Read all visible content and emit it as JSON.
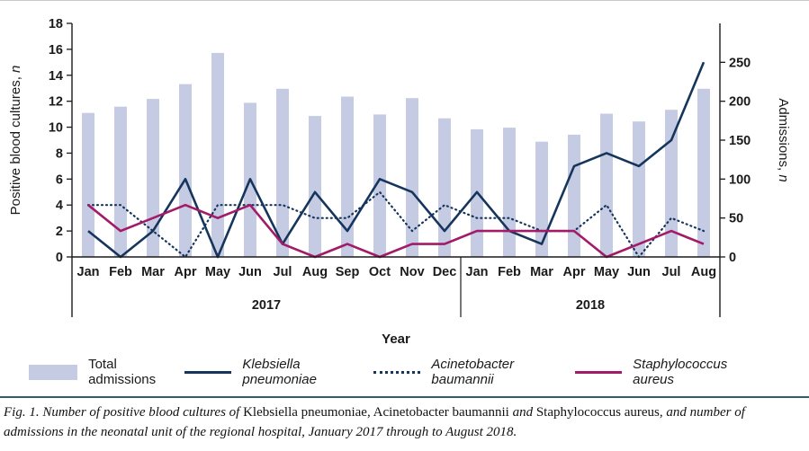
{
  "chart_data": {
    "type": "bar",
    "categories": [
      "Jan",
      "Feb",
      "Mar",
      "Apr",
      "May",
      "Jun",
      "Jul",
      "Aug",
      "Sep",
      "Oct",
      "Nov",
      "Dec",
      "Jan",
      "Feb",
      "Mar",
      "Apr",
      "May",
      "Jun",
      "Jul",
      "Aug"
    ],
    "year_groups": [
      {
        "label": "2017",
        "span": 12
      },
      {
        "label": "2018",
        "span": 8
      }
    ],
    "series": [
      {
        "name": "Total admissions",
        "type": "bar",
        "axis": "right",
        "color": "#c6cbe4",
        "values": [
          185,
          193,
          203,
          222,
          262,
          198,
          216,
          181,
          206,
          183,
          204,
          178,
          164,
          166,
          148,
          157,
          184,
          174,
          189,
          216
        ]
      },
      {
        "name": "Klebsiella pneumoniae",
        "type": "line",
        "axis": "left",
        "color": "#16355c",
        "values": [
          2,
          0,
          2,
          6,
          0,
          6,
          1,
          5,
          2,
          6,
          5,
          2,
          5,
          2,
          1,
          7,
          8,
          7,
          9,
          15
        ]
      },
      {
        "name": "Acinetobacter baumannii",
        "type": "dotted",
        "axis": "left",
        "color": "#16355c",
        "values": [
          4,
          4,
          2,
          0,
          4,
          4,
          4,
          3,
          3,
          5,
          2,
          4,
          3,
          3,
          2,
          2,
          4,
          0,
          3,
          2
        ]
      },
      {
        "name": "Staphylococcus aureus",
        "type": "line",
        "axis": "left",
        "color": "#a21a68",
        "values": [
          4,
          2,
          3,
          4,
          3,
          4,
          1,
          0,
          1,
          0,
          1,
          1,
          2,
          2,
          2,
          2,
          0,
          1,
          2,
          1
        ]
      }
    ],
    "left_axis": {
      "label": "Positive blood cultures, ",
      "label_italic_suffix": "n",
      "min": 0,
      "max": 18,
      "step": 2
    },
    "right_axis": {
      "label": "Admissions, ",
      "label_italic_suffix": "n",
      "min": 0,
      "max": 300,
      "ticks": [
        0,
        50,
        100,
        150,
        200,
        250
      ]
    },
    "xlabel": "Year",
    "grid": false,
    "legend_position": "bottom"
  },
  "legend": {
    "items": [
      {
        "label": "Total admissions",
        "italic": false
      },
      {
        "label": "Klebsiella pneumoniae",
        "italic": true
      },
      {
        "label": "Acinetobacter baumannii",
        "italic": true
      },
      {
        "label": "Staphylococcus aureus",
        "italic": true
      }
    ]
  },
  "caption": {
    "segments": [
      {
        "text": "Fig. 1. Number of positive blood cultures of ",
        "italic": true
      },
      {
        "text": "Klebsiella pneumoniae, Acinetobacter baumannii ",
        "italic": false
      },
      {
        "text": "and ",
        "italic": true
      },
      {
        "text": "Staphylococcus aureus",
        "italic": false
      },
      {
        "text": ", and number of admissions in the neonatal unit of the regional hospital, January 2017 through to August 2018.",
        "italic": true
      }
    ]
  },
  "colors": {
    "bar": "#c6cbe4",
    "navy": "#16355c",
    "magenta": "#a21a68",
    "rule": "#2e5d6d",
    "text": "#1a1a1a"
  }
}
